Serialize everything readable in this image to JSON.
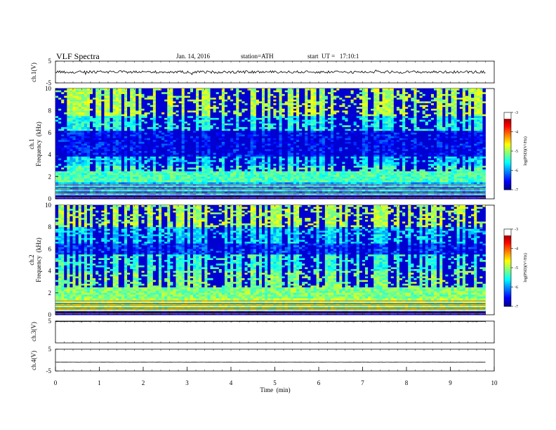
{
  "chart_data": {
    "type": "heatmap",
    "title": "VLF Spectra",
    "date": "Jan. 14, 2016",
    "station": "station=ATH",
    "start": "start  UT =   17:10:1",
    "xlabel": "Time  (min)",
    "x_ticks": [
      "0",
      "1",
      "2",
      "3",
      "4",
      "5",
      "6",
      "7",
      "8",
      "9",
      "10"
    ],
    "xlim": [
      0,
      10
    ],
    "data_end_min": 9.8,
    "panels": [
      {
        "id": "ch1-wave",
        "type": "line",
        "ylabel": "ch.1(V)",
        "y_ticks": [
          "5",
          "-5"
        ],
        "ylim": [
          -5,
          5
        ],
        "level": 0.0
      },
      {
        "id": "ch1-spec",
        "type": "heatmap",
        "ylabel_top": "ch.1",
        "ylabel": "Frequency  (kHz)",
        "y_ticks": [
          "0",
          "2",
          "4",
          "6",
          "8",
          "10"
        ],
        "ylim": [
          0,
          10
        ],
        "colorbar": {
          "label": "log(PSD)(V²/Hz)",
          "ticks": [
            "-3",
            "-4",
            "-5",
            "-6",
            "-7"
          ],
          "range": [
            -7,
            -3
          ]
        }
      },
      {
        "id": "ch2-spec",
        "type": "heatmap",
        "ylabel_top": "ch.2",
        "ylabel": "Frequency  (kHz)",
        "y_ticks": [
          "0",
          "2",
          "4",
          "6",
          "8",
          "10"
        ],
        "ylim": [
          0,
          10
        ],
        "colorbar": {
          "label": "log(PSD)(V²/Hz)",
          "ticks": [
            "-3",
            "-4",
            "-5",
            "-6",
            "-7"
          ],
          "range": [
            -7,
            -3
          ]
        }
      },
      {
        "id": "ch3-wave",
        "type": "line",
        "ylabel": "ch.3(V)",
        "y_ticks": [
          "5"
        ],
        "ylim": [
          -5,
          5
        ],
        "level": 4.8
      },
      {
        "id": "ch4-wave",
        "type": "line",
        "ylabel": "ch.4(V)",
        "y_ticks": [
          "5",
          "-5"
        ],
        "ylim": [
          -5,
          5
        ],
        "level": -0.9
      }
    ]
  }
}
